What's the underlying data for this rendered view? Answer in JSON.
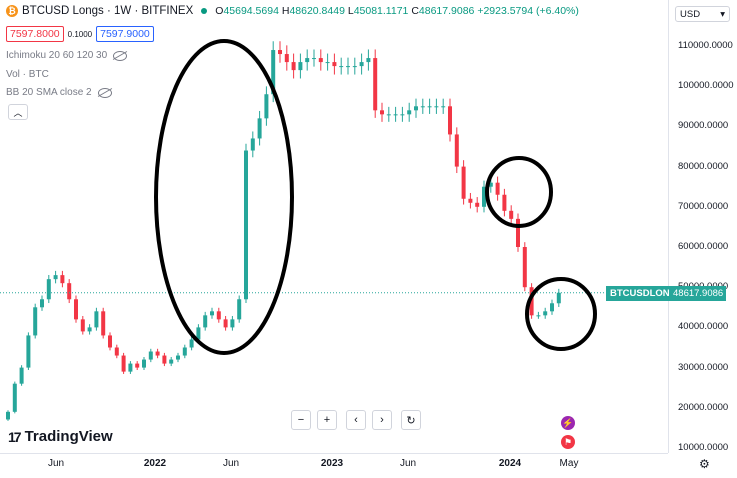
{
  "header": {
    "symbol_icon": "bitcoin-coin-icon",
    "title": "BTCUSD Longs · 1W · BITFINEX",
    "ohlc": {
      "o_label": "O",
      "o": "45694.5694",
      "h_label": "H",
      "h": "48620.8449",
      "l_label": "L",
      "l": "45081.1171",
      "c_label": "C",
      "c": "48617.9086",
      "change": "+2923.5794 (+6.40%)"
    }
  },
  "trade": {
    "sell": "7597.8000",
    "spread": "0.1000",
    "buy": "7597.9000"
  },
  "indicators": [
    {
      "label": "Ichimoku 20 60 120 30"
    },
    {
      "label": "Vol · BTC"
    },
    {
      "label": "BB 20 SMA close 2"
    }
  ],
  "currency": "USD",
  "price_axis": [
    "110000.0000",
    "100000.0000",
    "90000.0000",
    "80000.0000",
    "70000.0000",
    "60000.0000",
    "50000.0000",
    "40000.0000",
    "30000.0000",
    "20000.0000",
    "10000.0000"
  ],
  "last_price_label": "BTCUSDLONGS",
  "last_price": "48617.9086",
  "time_axis": [
    "Jun",
    "2022",
    "Jun",
    "2023",
    "Jun",
    "2024",
    "May"
  ],
  "brand": "TradingView",
  "colors": {
    "up": "#26a69a",
    "down": "#f23645",
    "annotation": "#000000"
  },
  "chart_data": {
    "type": "candlestick",
    "title": "BTCUSD Longs · 1W · BITFINEX",
    "ylim": [
      8000,
      115000
    ],
    "y_unit": "USD",
    "series": [
      {
        "name": "BTCUSD Longs",
        "values": [
          19000,
          26000,
          30000,
          38000,
          45000,
          47000,
          52000,
          53000,
          51000,
          47000,
          42000,
          39000,
          40000,
          44000,
          38000,
          35000,
          33000,
          29000,
          31000,
          30000,
          32000,
          34000,
          33000,
          31000,
          32000,
          33000,
          35000,
          37000,
          40000,
          43000,
          44000,
          42000,
          40000,
          42000,
          47000,
          84000,
          87000,
          92000,
          98000,
          109000,
          108000,
          106000,
          104000,
          106000,
          107000,
          107000,
          106000,
          106000,
          105000,
          105000,
          105000,
          105000,
          106000,
          107000,
          94000,
          93000,
          93000,
          93000,
          93000,
          94000,
          95000,
          95000,
          95000,
          95000,
          95000,
          88000,
          80000,
          72000,
          71000,
          70000,
          75000,
          76000,
          73000,
          69000,
          67000,
          60000,
          50000,
          43000,
          43000,
          44000,
          46000,
          48617.9086
        ]
      }
    ]
  }
}
